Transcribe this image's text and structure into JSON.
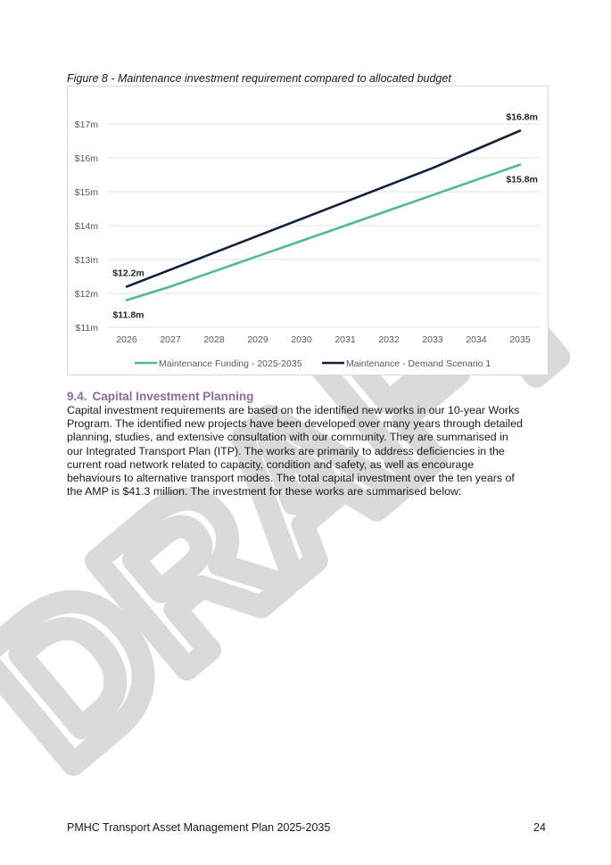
{
  "figure_caption": "Figure 8 - Maintenance investment requirement compared to allocated budget",
  "chart_data": {
    "type": "line",
    "x": [
      2026,
      2027,
      2028,
      2029,
      2030,
      2031,
      2032,
      2033,
      2034,
      2035
    ],
    "x_tick_labels": [
      "2026",
      "2027",
      "2028",
      "2029",
      "2030",
      "2031",
      "2032",
      "2033",
      "2034",
      "2035"
    ],
    "y_tick_labels": [
      "$11m",
      "$12m",
      "$13m",
      "$14m",
      "$15m",
      "$16m",
      "$17m"
    ],
    "y_ticks": [
      11,
      12,
      13,
      14,
      15,
      16,
      17
    ],
    "ylim": [
      11,
      17
    ],
    "grid": "horizontal",
    "legend_position": "bottom",
    "series": [
      {
        "name": "Maintenance Funding - 2025-2035",
        "color": "#4dbd8c",
        "values": [
          11.8,
          12.2,
          12.65,
          13.1,
          13.55,
          14.0,
          14.45,
          14.9,
          15.35,
          15.8
        ],
        "labels": [
          {
            "index": 0,
            "text": "$11.8m",
            "placement": "below"
          },
          {
            "index": 9,
            "text": "$15.8m",
            "placement": "below"
          }
        ]
      },
      {
        "name": "Maintenance - Demand Scenario 1",
        "color": "#0f1f3d",
        "values": [
          12.2,
          12.7,
          13.2,
          13.7,
          14.2,
          14.7,
          15.2,
          15.7,
          16.25,
          16.8
        ],
        "labels": [
          {
            "index": 0,
            "text": "$12.2m",
            "placement": "above"
          },
          {
            "index": 9,
            "text": "$16.8m",
            "placement": "above"
          }
        ]
      }
    ]
  },
  "section": {
    "number": "9.4.",
    "title": "Capital Investment Planning",
    "lines": [
      "Capital investment requirements are based on the identified new works in our 10-year Works",
      "Program. The identified new projects have been developed over many years through detailed",
      "planning, studies, and extensive consultation with our community. They are summarised in",
      "our Integrated Transport Plan (ITP). The works are primarily to address deficiencies in the",
      "current road network related to capacity, condition and safety, as well as encourage",
      "behaviours to alternative transport modes. The total capital investment over the ten years of",
      "the AMP is $41.3 million. The investment for these works are summarised below:"
    ]
  },
  "footer": {
    "document_title": "PMHC Transport Asset Management Plan 2025-2035",
    "page_number": "24"
  },
  "watermark": {
    "text": "DRAFT",
    "color": "#bdbdbd"
  }
}
